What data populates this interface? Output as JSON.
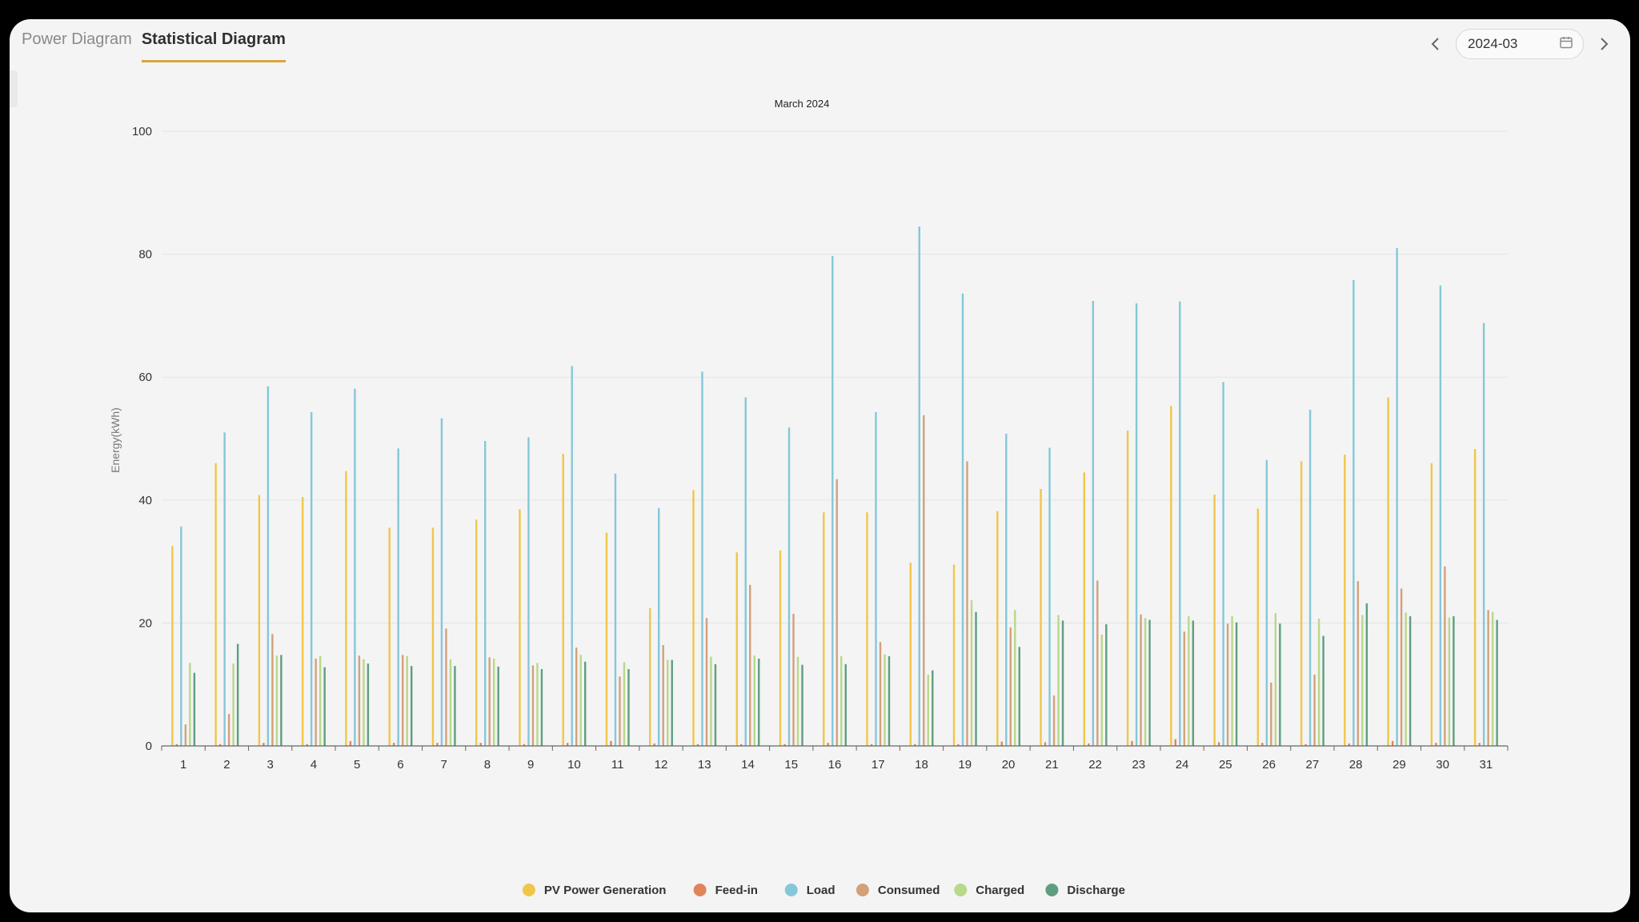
{
  "tabs": [
    {
      "label": "Power Diagram",
      "active": false
    },
    {
      "label": "Statistical Diagram",
      "active": true
    }
  ],
  "date_picker": {
    "value": "2024-03",
    "prev_icon": "chevron-left-icon",
    "next_icon": "chevron-right-icon",
    "calendar_icon": "calendar-icon"
  },
  "chart_data": {
    "type": "bar",
    "title": "March 2024",
    "ylabel": "Energy(kWh)",
    "xlabel": "",
    "ylim": [
      0,
      100
    ],
    "yticks": [
      0,
      20,
      40,
      60,
      80,
      100
    ],
    "grid": true,
    "legend_position": "bottom-center",
    "categories": [
      "1",
      "2",
      "3",
      "4",
      "5",
      "6",
      "7",
      "8",
      "9",
      "10",
      "11",
      "12",
      "13",
      "14",
      "15",
      "16",
      "17",
      "18",
      "19",
      "20",
      "21",
      "22",
      "23",
      "24",
      "25",
      "26",
      "27",
      "28",
      "29",
      "30",
      "31"
    ],
    "series": [
      {
        "name": "PV Power Generation",
        "color": "#f0c64a",
        "values": [
          32.5,
          46,
          40.8,
          40.5,
          44.7,
          35.5,
          35.5,
          36.8,
          38.5,
          47.5,
          34.7,
          22.4,
          41.6,
          31.5,
          31.8,
          38,
          38,
          29.8,
          29.5,
          38.2,
          41.8,
          44.5,
          51.3,
          55.3,
          40.9,
          38.6,
          46.3,
          47.4,
          56.7,
          46,
          48.3
        ]
      },
      {
        "name": "Feed-in",
        "color": "#e0855a",
        "values": [
          0.3,
          0.3,
          0.5,
          0.3,
          0.8,
          0.5,
          0.5,
          0.5,
          0.3,
          0.5,
          0.8,
          0.4,
          0.3,
          0.3,
          0.3,
          0.5,
          0.3,
          0.3,
          0.3,
          0.7,
          0.6,
          0.4,
          0.8,
          1.1,
          0.6,
          0.5,
          0.3,
          0.4,
          0.8,
          0.5,
          0.5
        ]
      },
      {
        "name": "Load",
        "color": "#85c7d9",
        "values": [
          35.7,
          51,
          58.5,
          54.3,
          58.1,
          48.4,
          53.3,
          49.6,
          50.2,
          61.8,
          44.3,
          38.7,
          60.9,
          56.7,
          51.8,
          79.7,
          54.3,
          84.5,
          73.6,
          50.8,
          48.5,
          72.4,
          72,
          72.3,
          59.2,
          46.5,
          54.7,
          75.8,
          81,
          74.9,
          68.8
        ]
      },
      {
        "name": "Consumed",
        "color": "#d4a07a",
        "values": [
          3.5,
          5.2,
          18.2,
          14.2,
          14.7,
          14.8,
          19.1,
          14.4,
          13.1,
          16,
          11.3,
          16.4,
          20.8,
          26.2,
          21.5,
          43.4,
          16.9,
          53.8,
          46.3,
          19.3,
          8.2,
          26.9,
          21.4,
          18.6,
          19.9,
          10.3,
          11.6,
          26.8,
          25.6,
          29.2,
          22.1
        ]
      },
      {
        "name": "Charged",
        "color": "#b8d88a",
        "values": [
          13.5,
          13.4,
          14.7,
          14.6,
          14.1,
          14.6,
          14.1,
          14.2,
          13.5,
          14.8,
          13.6,
          14,
          14.5,
          14.7,
          14.5,
          14.6,
          14.9,
          11.6,
          23.7,
          22.1,
          21.3,
          18.1,
          20.8,
          21.1,
          21.1,
          21.6,
          20.7,
          21.3,
          21.7,
          20.9,
          21.8
        ]
      },
      {
        "name": "Discharge",
        "color": "#5e9e80",
        "values": [
          11.9,
          16.6,
          14.8,
          12.8,
          13.4,
          13,
          13,
          12.9,
          12.5,
          13.7,
          12.5,
          14,
          13.3,
          14.2,
          13.2,
          13.3,
          14.6,
          12.3,
          21.8,
          16.1,
          20.4,
          19.8,
          20.5,
          20.4,
          20.1,
          19.9,
          17.9,
          23.2,
          21.1,
          21.1,
          20.5
        ]
      }
    ]
  }
}
